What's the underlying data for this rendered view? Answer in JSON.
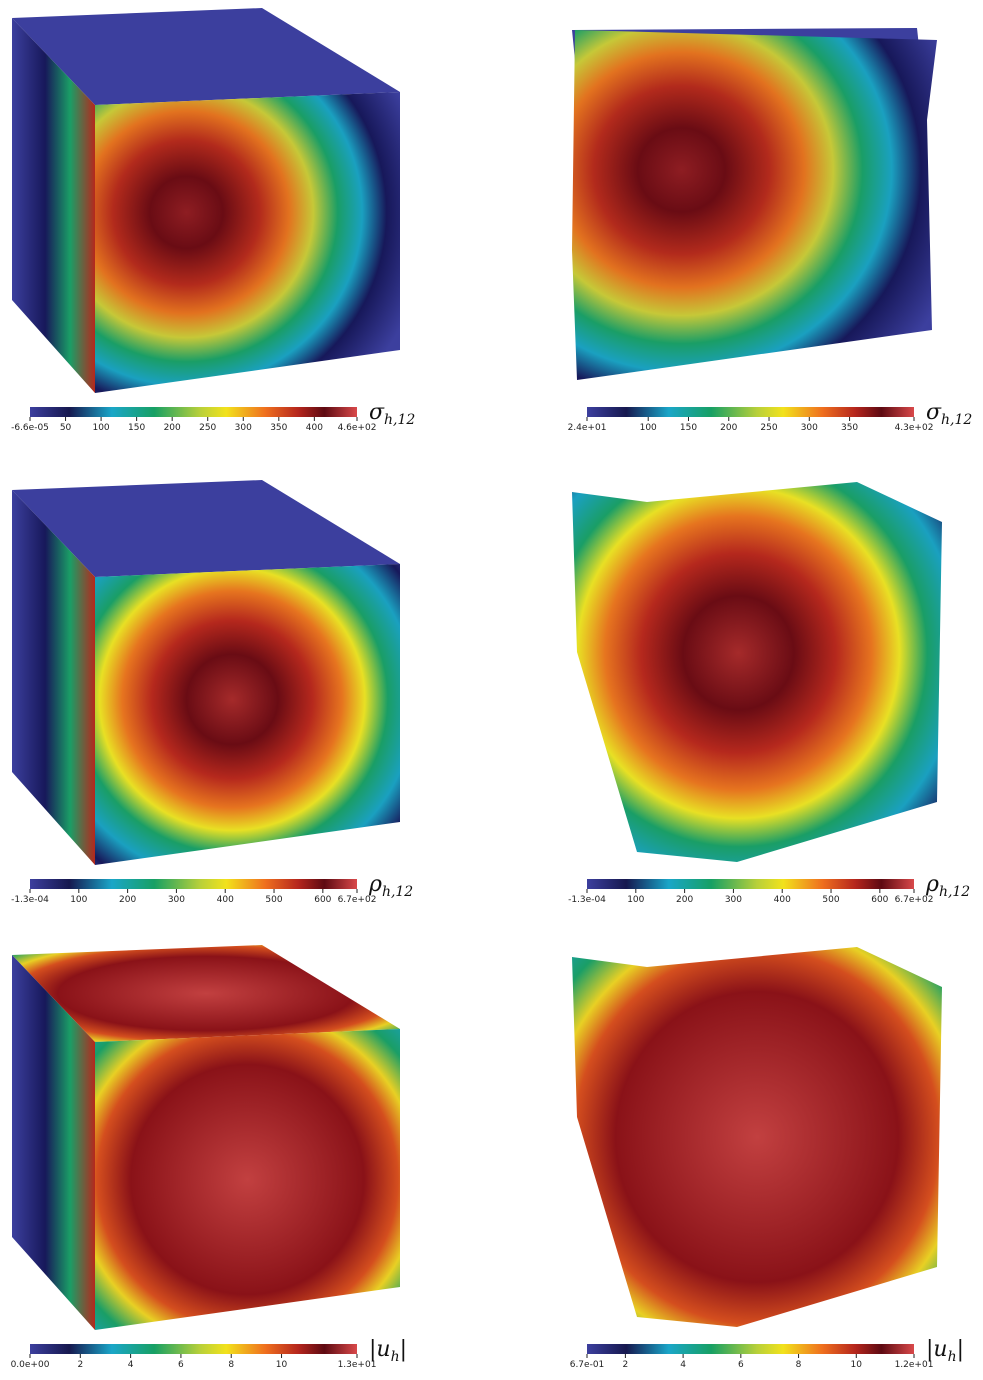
{
  "panels": [
    {
      "symbol": "σ",
      "subscript": "h,12",
      "colorbar": {
        "range": [
          -6.6e-05,
          460
        ],
        "ticks": [
          {
            "value": -6.6e-05,
            "label": "-6.6e-05"
          },
          50,
          100,
          150,
          200,
          250,
          300,
          350,
          400,
          {
            "value": 460,
            "label": "4.6e+02"
          }
        ]
      }
    },
    {
      "symbol": "σ",
      "subscript": "h,12",
      "colorbar": {
        "range": [
          24,
          430
        ],
        "ticks": [
          {
            "value": 24,
            "label": "2.4e+01"
          },
          100,
          150,
          200,
          250,
          300,
          350,
          {
            "value": 430,
            "label": "4.3e+02"
          }
        ]
      }
    },
    {
      "symbol": "ρ",
      "subscript": "h,12",
      "colorbar": {
        "range": [
          -0.00013,
          670
        ],
        "ticks": [
          {
            "value": -0.00013,
            "label": "-1.3e-04"
          },
          100,
          200,
          300,
          400,
          500,
          600,
          {
            "value": 670,
            "label": "6.7e+02"
          }
        ]
      }
    },
    {
      "symbol": "ρ",
      "subscript": "h,12",
      "colorbar": {
        "range": [
          -0.00013,
          670
        ],
        "ticks": [
          {
            "value": -0.00013,
            "label": "-1.3e-04"
          },
          100,
          200,
          300,
          400,
          500,
          600,
          {
            "value": 670,
            "label": "6.7e+02"
          }
        ]
      }
    },
    {
      "symbol": "|u",
      "subscript": "h",
      "suffix": "|",
      "colorbar": {
        "range": [
          0,
          13
        ],
        "ticks": [
          {
            "value": 0,
            "label": "0.0e+00"
          },
          2,
          4,
          6,
          8,
          10,
          {
            "value": 13,
            "label": "1.3e+01"
          }
        ]
      }
    },
    {
      "symbol": "|u",
      "subscript": "h",
      "suffix": "|",
      "colorbar": {
        "range": [
          0.67,
          12
        ],
        "ticks": [
          {
            "value": 0.67,
            "label": "6.7e-01"
          },
          2,
          4,
          6,
          8,
          10,
          {
            "value": 12,
            "label": "1.2e+01"
          }
        ]
      }
    }
  ]
}
